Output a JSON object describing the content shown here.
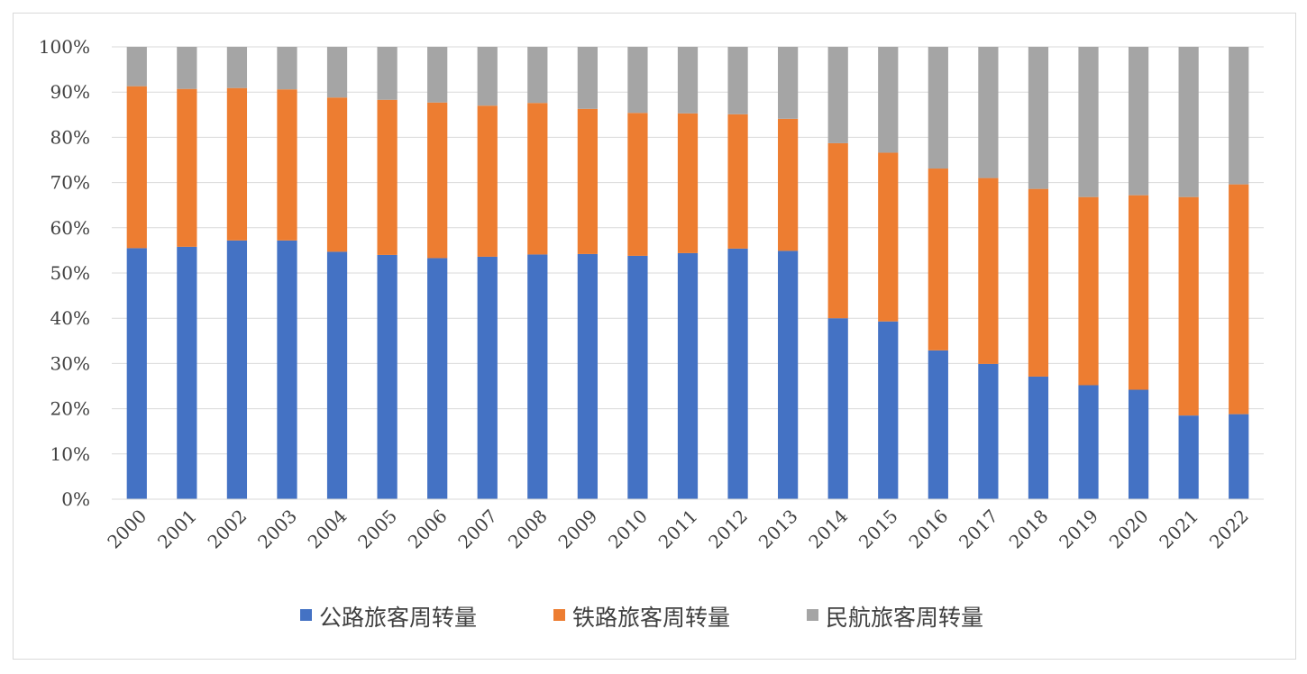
{
  "chart_data": {
    "type": "bar",
    "stacked": true,
    "percent": true,
    "categories": [
      "2000",
      "2001",
      "2002",
      "2003",
      "2004",
      "2005",
      "2006",
      "2007",
      "2008",
      "2009",
      "2010",
      "2011",
      "2012",
      "2013",
      "2014",
      "2015",
      "2016",
      "2017",
      "2018",
      "2019",
      "2020",
      "2021",
      "2022"
    ],
    "series": [
      {
        "name": "公路旅客周转量",
        "color": "#4472c4",
        "values": [
          55.5,
          55.8,
          57.2,
          57.2,
          54.7,
          54.0,
          53.3,
          53.6,
          54.1,
          54.2,
          53.8,
          54.4,
          55.4,
          54.9,
          40.0,
          39.3,
          32.9,
          29.9,
          27.1,
          25.2,
          24.2,
          18.5,
          18.8
        ]
      },
      {
        "name": "铁路旅客周转量",
        "color": "#ed7d31",
        "values": [
          35.8,
          34.9,
          33.7,
          33.4,
          34.1,
          34.3,
          34.4,
          33.4,
          33.5,
          32.1,
          31.6,
          30.9,
          29.7,
          29.2,
          38.7,
          37.3,
          40.2,
          41.1,
          41.5,
          41.6,
          43.0,
          48.3,
          50.8
        ]
      },
      {
        "name": "民航旅客周转量",
        "color": "#a5a5a5",
        "values": [
          8.7,
          9.3,
          9.1,
          9.4,
          11.2,
          11.7,
          12.3,
          13.0,
          12.4,
          13.7,
          14.6,
          14.7,
          14.9,
          15.9,
          21.3,
          23.4,
          26.9,
          29.0,
          31.4,
          33.2,
          32.8,
          33.2,
          30.4
        ]
      }
    ],
    "yticks": [
      "0%",
      "10%",
      "20%",
      "30%",
      "40%",
      "50%",
      "60%",
      "70%",
      "80%",
      "90%",
      "100%"
    ],
    "ylim": [
      0,
      100
    ],
    "grid": true,
    "legend": "bottom"
  }
}
